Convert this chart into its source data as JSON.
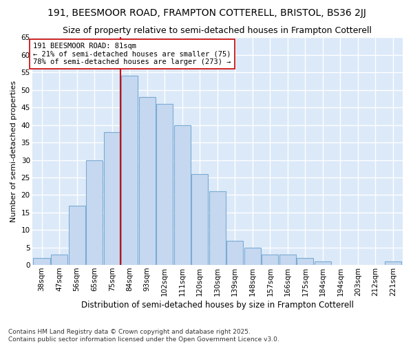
{
  "title": "191, BEESMOOR ROAD, FRAMPTON COTTERELL, BRISTOL, BS36 2JJ",
  "subtitle": "Size of property relative to semi-detached houses in Frampton Cotterell",
  "xlabel": "Distribution of semi-detached houses by size in Frampton Cotterell",
  "ylabel": "Number of semi-detached properties",
  "categories": [
    "38sqm",
    "47sqm",
    "56sqm",
    "65sqm",
    "75sqm",
    "84sqm",
    "93sqm",
    "102sqm",
    "111sqm",
    "120sqm",
    "130sqm",
    "139sqm",
    "148sqm",
    "157sqm",
    "166sqm",
    "175sqm",
    "184sqm",
    "194sqm",
    "203sqm",
    "212sqm",
    "221sqm"
  ],
  "values": [
    2,
    3,
    17,
    30,
    38,
    54,
    48,
    46,
    40,
    26,
    21,
    7,
    5,
    3,
    3,
    2,
    1,
    0,
    0,
    0,
    1
  ],
  "bar_color": "#c5d8f0",
  "bar_edge_color": "#7aabd4",
  "vline_x_index": 4.5,
  "vline_color": "#cc0000",
  "annotation_text": "191 BEESMOOR ROAD: 81sqm\n← 21% of semi-detached houses are smaller (75)\n78% of semi-detached houses are larger (273) →",
  "annotation_box_color": "#ffffff",
  "annotation_box_edge": "#cc0000",
  "ylim": [
    0,
    65
  ],
  "yticks": [
    0,
    5,
    10,
    15,
    20,
    25,
    30,
    35,
    40,
    45,
    50,
    55,
    60,
    65
  ],
  "background_color": "#dce9f8",
  "grid_color": "#ffffff",
  "fig_background": "#ffffff",
  "footnote": "Contains HM Land Registry data © Crown copyright and database right 2025.\nContains public sector information licensed under the Open Government Licence v3.0.",
  "title_fontsize": 10,
  "subtitle_fontsize": 9,
  "xlabel_fontsize": 8.5,
  "ylabel_fontsize": 8,
  "tick_fontsize": 7.5,
  "annot_fontsize": 7.5,
  "footnote_fontsize": 6.5
}
